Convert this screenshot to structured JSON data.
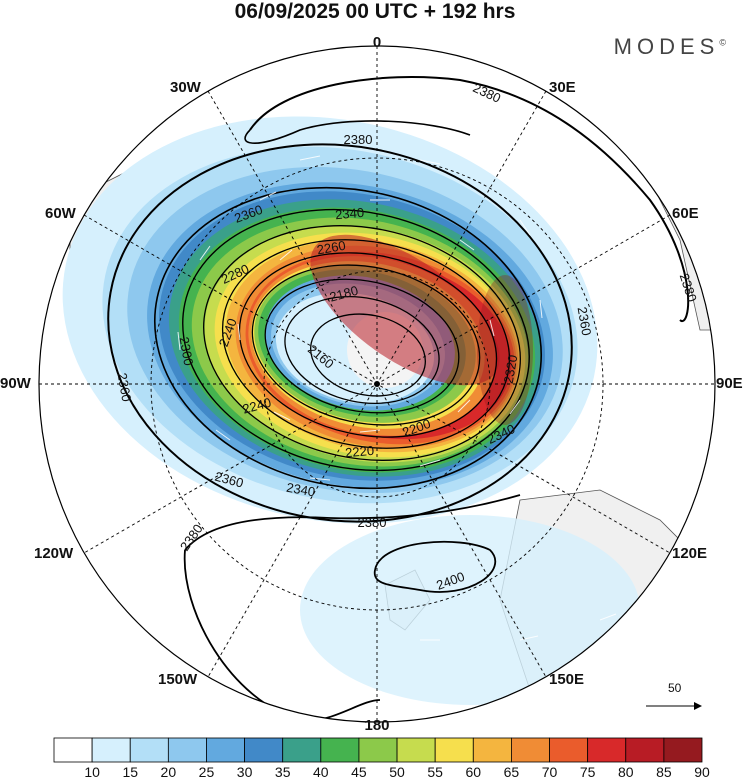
{
  "header": {
    "title": "06/09/2025  00 UTC  + 192 hrs",
    "brand": "MODES",
    "brand_mark": "©"
  },
  "map": {
    "projection": "south polar stereographic",
    "longitude_labels": [
      "0",
      "30E",
      "60E",
      "90E",
      "120E",
      "150E",
      "180",
      "150W",
      "120W",
      "90W",
      "60W",
      "30W"
    ],
    "contour_labels": [
      "2380",
      "2380",
      "2380",
      "2380",
      "2380",
      "2360",
      "2360",
      "2360",
      "2360",
      "2340",
      "2340",
      "2340",
      "2320",
      "2300",
      "2280",
      "2260",
      "2240",
      "2240",
      "2220",
      "2200",
      "2180",
      "2160",
      "2400"
    ],
    "wind_reference": {
      "value": "50"
    }
  },
  "colorbar": {
    "ticks": [
      "10",
      "15",
      "20",
      "25",
      "30",
      "35",
      "40",
      "45",
      "50",
      "55",
      "60",
      "65",
      "70",
      "75",
      "80",
      "85",
      "90"
    ],
    "colors": [
      "#ffffff",
      "#d6f0fd",
      "#b3dff7",
      "#8ec8ee",
      "#62a9df",
      "#4189c8",
      "#3aa08a",
      "#45b34f",
      "#8cc94a",
      "#c6dc4e",
      "#f6df4d",
      "#f4b53f",
      "#f08c35",
      "#ea5c2c",
      "#d8292a",
      "#b81c25",
      "#951a1f"
    ]
  }
}
